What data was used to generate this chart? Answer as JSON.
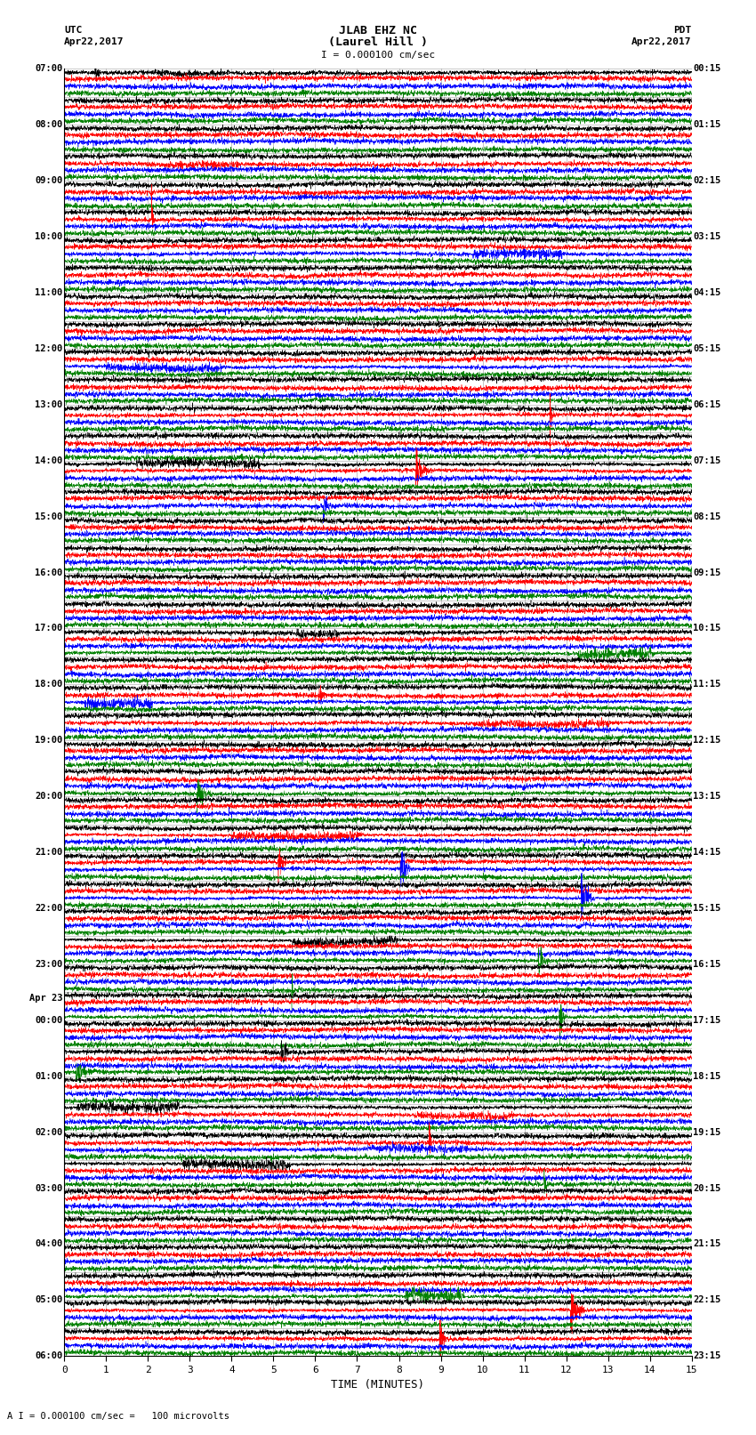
{
  "title_line1": "JLAB EHZ NC",
  "title_line2": "(Laurel Hill )",
  "scale_label": "I = 0.000100 cm/sec",
  "utc_label": "UTC",
  "pdt_label": "PDT",
  "date_left": "Apr22,2017",
  "date_right": "Apr22,2017",
  "footer_label": "A I = 0.000100 cm/sec =   100 microvolts",
  "xlabel": "TIME (MINUTES)",
  "bg_color": "#ffffff",
  "trace_colors": [
    "black",
    "red",
    "blue",
    "green"
  ],
  "grid_color": "#999999",
  "n_groups": 46,
  "traces_per_group": 4,
  "left_labels": [
    [
      "07:00",
      0
    ],
    [
      "08:00",
      1
    ],
    [
      "09:00",
      2
    ],
    [
      "10:00",
      3
    ],
    [
      "11:00",
      4
    ],
    [
      "12:00",
      5
    ],
    [
      "13:00",
      6
    ],
    [
      "14:00",
      7
    ],
    [
      "15:00",
      8
    ],
    [
      "16:00",
      9
    ],
    [
      "17:00",
      10
    ],
    [
      "18:00",
      11
    ],
    [
      "19:00",
      12
    ],
    [
      "20:00",
      13
    ],
    [
      "21:00",
      14
    ],
    [
      "22:00",
      15
    ],
    [
      "23:00",
      16
    ],
    [
      "Apr 23",
      16.6
    ],
    [
      "00:00",
      17
    ],
    [
      "01:00",
      18
    ],
    [
      "02:00",
      19
    ],
    [
      "03:00",
      20
    ],
    [
      "04:00",
      21
    ],
    [
      "05:00",
      22
    ],
    [
      "06:00",
      23
    ]
  ],
  "right_labels": [
    [
      "00:15",
      0
    ],
    [
      "01:15",
      1
    ],
    [
      "02:15",
      2
    ],
    [
      "03:15",
      3
    ],
    [
      "04:15",
      4
    ],
    [
      "05:15",
      5
    ],
    [
      "06:15",
      6
    ],
    [
      "07:15",
      7
    ],
    [
      "08:15",
      8
    ],
    [
      "09:15",
      9
    ],
    [
      "10:15",
      10
    ],
    [
      "11:15",
      11
    ],
    [
      "12:15",
      12
    ],
    [
      "13:15",
      13
    ],
    [
      "14:15",
      14
    ],
    [
      "15:15",
      15
    ],
    [
      "16:15",
      16
    ],
    [
      "17:15",
      17
    ],
    [
      "18:15",
      18
    ],
    [
      "19:15",
      19
    ],
    [
      "20:15",
      20
    ],
    [
      "21:15",
      21
    ],
    [
      "22:15",
      22
    ],
    [
      "23:15",
      23
    ]
  ]
}
